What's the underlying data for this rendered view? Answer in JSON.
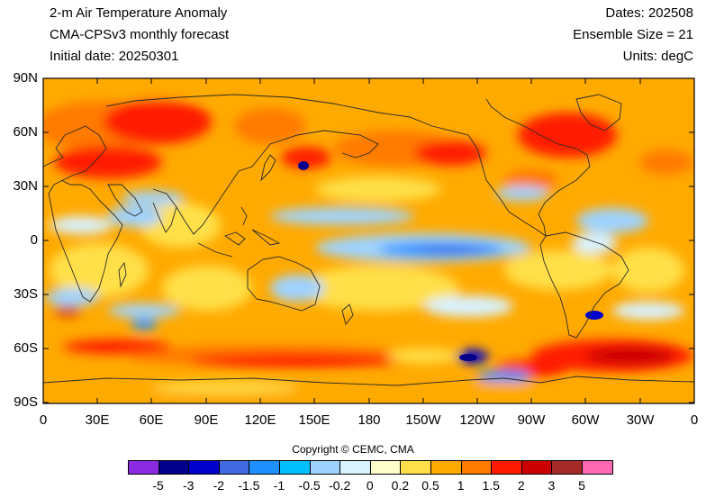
{
  "header": {
    "title": "2-m Air Temperature Anomaly",
    "model": "CMA-CPSv3 monthly forecast",
    "initial_date": "Initial date: 20250301",
    "dates": "Dates: 202508",
    "ensemble": "Ensemble Size = 21",
    "units": "Units: degC"
  },
  "map": {
    "lat_labels": [
      "90N",
      "60N",
      "30N",
      "0",
      "30S",
      "60S",
      "90S"
    ],
    "lon_labels": [
      "0",
      "30E",
      "60E",
      "90E",
      "120E",
      "150E",
      "180",
      "150W",
      "120W",
      "90W",
      "60W",
      "30W",
      "0"
    ]
  },
  "copyright": "Copyright © CEMC, CMA",
  "colorbar": {
    "colors": [
      "#8a2be2",
      "#00008b",
      "#0000cd",
      "#4169e1",
      "#1e90ff",
      "#00bfff",
      "#9fd3ff",
      "#d8f2ff",
      "#ffffcc",
      "#ffe04a",
      "#ffaa00",
      "#ff7a00",
      "#ff1a00",
      "#cc0000",
      "#a52a2a",
      "#ff69b4"
    ],
    "labels": [
      "-5",
      "-3",
      "-2",
      "-1.5",
      "-1",
      "-0.5",
      "-0.2",
      "0",
      "0.2",
      "0.5",
      "1",
      "1.5",
      "2",
      "3",
      "5"
    ]
  }
}
